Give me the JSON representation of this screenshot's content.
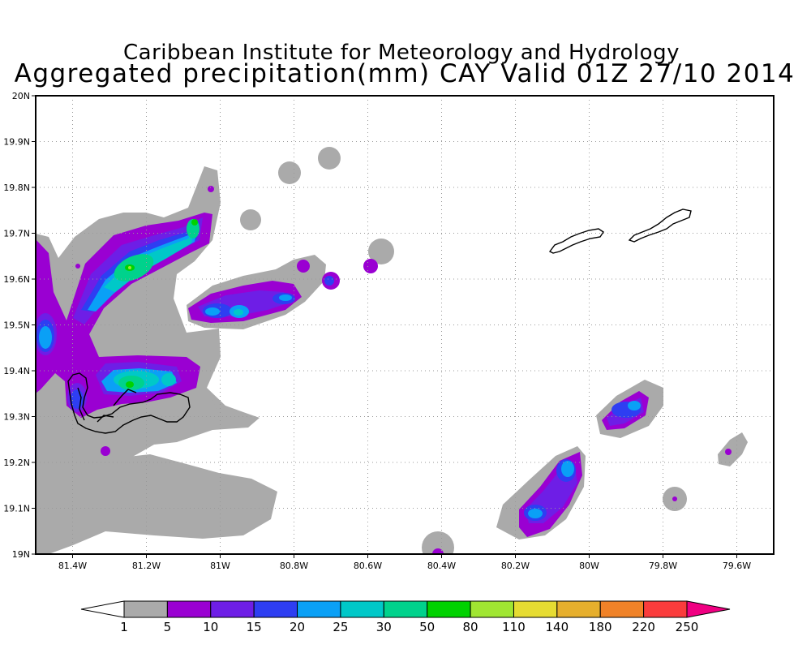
{
  "title": {
    "line1": "Caribbean Institute for Meteorology and Hydrology",
    "line2": "Aggregated precipitation(mm) CAY Valid 01Z 27/10 2014"
  },
  "map": {
    "lon_range": [
      -81.5,
      -79.5
    ],
    "lat_range": [
      19.0,
      20.0
    ],
    "x_ticks": [
      {
        "lon": -81.4,
        "label": "81.4W"
      },
      {
        "lon": -81.2,
        "label": "81.2W"
      },
      {
        "lon": -81.0,
        "label": "81W"
      },
      {
        "lon": -80.8,
        "label": "80.8W"
      },
      {
        "lon": -80.6,
        "label": "80.6W"
      },
      {
        "lon": -80.4,
        "label": "80.4W"
      },
      {
        "lon": -80.2,
        "label": "80.2W"
      },
      {
        "lon": -80.0,
        "label": "80W"
      },
      {
        "lon": -79.8,
        "label": "79.8W"
      },
      {
        "lon": -79.6,
        "label": "79.6W"
      }
    ],
    "y_ticks": [
      {
        "lat": 19.0,
        "label": "19N"
      },
      {
        "lat": 19.1,
        "label": "19.1N"
      },
      {
        "lat": 19.2,
        "label": "19.2N"
      },
      {
        "lat": 19.3,
        "label": "19.3N"
      },
      {
        "lat": 19.4,
        "label": "19.4N"
      },
      {
        "lat": 19.5,
        "label": "19.5N"
      },
      {
        "lat": 19.6,
        "label": "19.6N"
      },
      {
        "lat": 19.7,
        "label": "19.7N"
      },
      {
        "lat": 19.8,
        "label": "19.8N"
      },
      {
        "lat": 19.9,
        "label": "19.9N"
      },
      {
        "lat": 20.0,
        "label": "20N"
      }
    ],
    "gridlines": true,
    "islands": [
      "Grand Cayman",
      "Little Cayman",
      "Cayman Brac"
    ]
  },
  "colorbar": {
    "levels": [
      "1",
      "5",
      "10",
      "15",
      "20",
      "25",
      "30",
      "50",
      "80",
      "110",
      "140",
      "180",
      "220",
      "250"
    ],
    "colors": [
      "#ffffff",
      "#aaaaaa",
      "#9a00d2",
      "#6e1ee6",
      "#2e3ef2",
      "#0aa0f6",
      "#00c8c8",
      "#00d28c",
      "#00d200",
      "#a0e632",
      "#e6dc32",
      "#e6af2d",
      "#f08228",
      "#fa3c3c",
      "#f00082"
    ]
  }
}
